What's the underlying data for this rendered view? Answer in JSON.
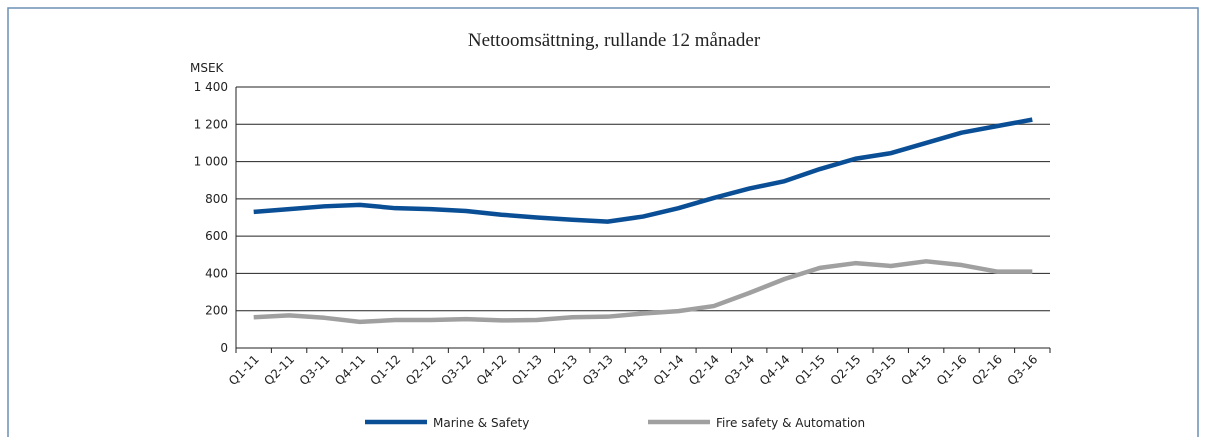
{
  "chart_data": {
    "type": "line",
    "title": "Nettoomsättning, rullande 12 månader",
    "y_label": "MSEK",
    "categories": [
      "Q1-11",
      "Q2-11",
      "Q3-11",
      "Q4-11",
      "Q1-12",
      "Q2-12",
      "Q3-12",
      "Q4-12",
      "Q1-13",
      "Q2-13",
      "Q3-13",
      "Q4-13",
      "Q1-14",
      "Q2-14",
      "Q3-14",
      "Q4-14",
      "Q1-15",
      "Q2-15",
      "Q3-15",
      "Q4-15",
      "Q1-16",
      "Q2-16",
      "Q3-16"
    ],
    "series": [
      {
        "name": "Marine & Safety",
        "color": "#0a4f96",
        "values": [
          730,
          745,
          760,
          768,
          750,
          745,
          735,
          715,
          700,
          688,
          678,
          705,
          750,
          805,
          855,
          895,
          960,
          1015,
          1045,
          1100,
          1155,
          1190,
          1225
        ]
      },
      {
        "name": "Fire safety & Automation",
        "color": "#a0a0a0",
        "values": [
          165,
          175,
          162,
          140,
          150,
          150,
          155,
          148,
          150,
          165,
          168,
          185,
          198,
          225,
          295,
          370,
          430,
          455,
          440,
          465,
          445,
          410,
          410
        ]
      }
    ],
    "ylim": [
      0,
      1400
    ],
    "yticks": [
      0,
      200,
      400,
      600,
      800,
      {
        "value": 1000,
        "label": "1 000"
      },
      {
        "value": 1200,
        "label": "1 200"
      },
      {
        "value": 1400,
        "label": "1 400"
      }
    ],
    "grid": true
  }
}
